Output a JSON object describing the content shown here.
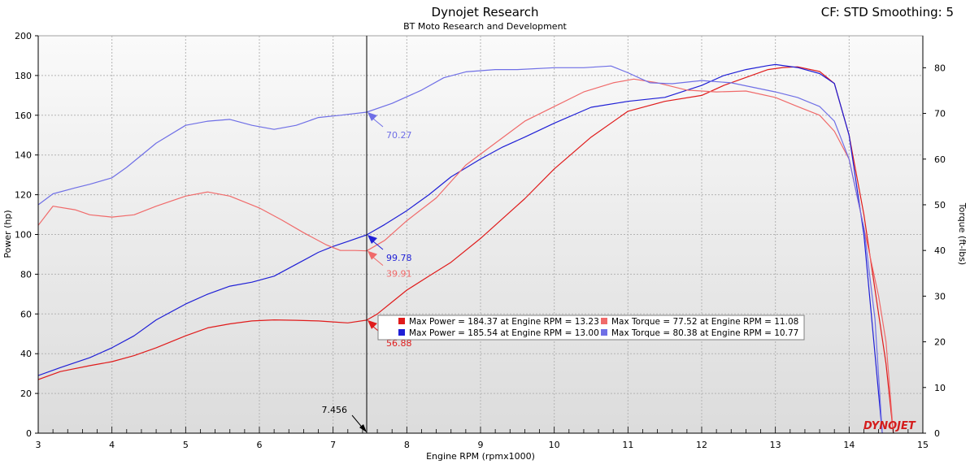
{
  "header": {
    "title": "Dynojet Research",
    "subtitle": "BT Moto Research and Development",
    "settings": "CF: STD Smoothing: 5"
  },
  "logo_text": "DYNOJET",
  "colors": {
    "red": "#e01b1b",
    "blue": "#1f1fd6",
    "light_red": "#f06a6a",
    "light_blue": "#6f6fe6",
    "plot_bg_top": "#fafafa",
    "plot_bg_bottom": "#dcdcdc"
  },
  "chart_data": {
    "type": "line",
    "title": "Dynojet Research",
    "subtitle": "BT Moto Research and Development",
    "xlabel": "Engine RPM (rpmx1000)",
    "ylabel": "Power (hp)",
    "y2label": "Torque (ft-lbs)",
    "xlim": [
      3,
      15
    ],
    "ylim": [
      0,
      200
    ],
    "y2lim": [
      0,
      87
    ],
    "xticks": [
      "3",
      "4",
      "5",
      "6",
      "7",
      "8",
      "9",
      "10",
      "11",
      "12",
      "13",
      "14",
      "15"
    ],
    "yticks": [
      "0",
      "20",
      "40",
      "60",
      "80",
      "100",
      "120",
      "140",
      "160",
      "180",
      "200"
    ],
    "y2ticks": [
      "0",
      "10",
      "20",
      "30",
      "40",
      "50",
      "60",
      "70",
      "80"
    ],
    "grid": true,
    "cursor": {
      "x": 7.456,
      "label": "7.456"
    },
    "callouts": [
      {
        "label": "70.27",
        "value": 70.27,
        "axis": "y2",
        "series": 3
      },
      {
        "label": "99.78",
        "value": 99.78,
        "axis": "y",
        "series": 1
      },
      {
        "label": "39.91",
        "value": 39.91,
        "axis": "y2",
        "series": 2
      },
      {
        "label": "56.88",
        "value": 56.88,
        "axis": "y",
        "series": 0
      }
    ],
    "legend": [
      "Max Power = 184.37 at Engine RPM = 13.23",
      "Max Torque = 77.52 at Engine RPM = 11.08",
      "Max Power = 185.54 at Engine RPM = 13.00",
      "Max Torque = 80.38 at Engine RPM = 10.77"
    ],
    "series": [
      {
        "name": "Max Power = 184.37 at Engine RPM = 13.23",
        "axis": "y",
        "color": "#e01b1b",
        "x": [
          3.0,
          3.3,
          3.7,
          4.0,
          4.3,
          4.6,
          5.0,
          5.3,
          5.6,
          5.9,
          6.2,
          6.5,
          6.8,
          7.0,
          7.2,
          7.456,
          7.6,
          7.8,
          8.0,
          8.3,
          8.6,
          9.0,
          9.3,
          9.6,
          10.0,
          10.5,
          11.0,
          11.5,
          12.0,
          12.3,
          12.6,
          12.9,
          13.1,
          13.3,
          13.6,
          13.8,
          14.0,
          14.2,
          14.4,
          14.5,
          14.6
        ],
        "y": [
          27,
          31,
          34,
          36,
          39,
          43,
          49,
          53,
          55,
          56.5,
          57,
          56.8,
          56.5,
          56,
          55.5,
          56.88,
          60,
          66,
          72,
          79,
          86,
          98,
          108,
          118,
          133,
          149,
          162,
          167,
          170,
          175,
          179,
          183,
          184,
          184.37,
          182,
          176,
          150,
          110,
          60,
          35,
          0
        ]
      },
      {
        "name": "Max Power = 185.54 at Engine RPM = 13.00",
        "axis": "y",
        "color": "#1f1fd6",
        "x": [
          3.0,
          3.3,
          3.7,
          4.0,
          4.3,
          4.6,
          5.0,
          5.3,
          5.6,
          5.9,
          6.2,
          6.5,
          6.8,
          7.0,
          7.2,
          7.456,
          7.7,
          8.0,
          8.3,
          8.6,
          9.0,
          9.3,
          9.6,
          10.0,
          10.5,
          11.0,
          11.5,
          12.0,
          12.3,
          12.6,
          12.9,
          13.0,
          13.3,
          13.6,
          13.8,
          14.0,
          14.2,
          14.35,
          14.45
        ],
        "y": [
          29,
          33,
          38,
          43,
          49,
          57,
          65,
          70,
          74,
          76,
          79,
          85,
          91,
          94,
          96.5,
          99.78,
          105,
          112,
          120,
          129,
          138,
          144,
          149,
          156,
          164,
          167,
          169,
          175,
          180,
          183,
          185,
          185.54,
          184,
          181,
          176,
          150,
          100,
          40,
          0
        ]
      },
      {
        "name": "Max Torque = 77.52 at Engine RPM = 11.08",
        "axis": "y2",
        "color": "#f06a6a",
        "x": [
          3.0,
          3.2,
          3.5,
          3.7,
          4.0,
          4.3,
          4.6,
          5.0,
          5.3,
          5.6,
          6.0,
          6.3,
          6.6,
          6.9,
          7.1,
          7.3,
          7.456,
          7.7,
          8.0,
          8.4,
          8.8,
          9.2,
          9.6,
          10.0,
          10.4,
          10.8,
          11.08,
          11.4,
          11.8,
          12.2,
          12.6,
          13.0,
          13.3,
          13.6,
          13.8,
          14.0,
          14.2,
          14.4,
          14.5,
          14.6
        ],
        "y": [
          45.5,
          49.7,
          48.9,
          47.8,
          47.3,
          47.8,
          49.7,
          51.9,
          52.8,
          51.9,
          49.3,
          46.7,
          43.9,
          41.3,
          40.0,
          40.0,
          39.91,
          42.2,
          46.5,
          51.5,
          58.7,
          63.5,
          68.3,
          71.5,
          74.7,
          76.7,
          77.52,
          76.7,
          75.1,
          74.7,
          74.9,
          73.5,
          71.5,
          69.6,
          66.1,
          60.0,
          45.0,
          30.0,
          20.0,
          0.0
        ]
      },
      {
        "name": "Max Torque = 80.38 at Engine RPM = 10.77",
        "axis": "y2",
        "color": "#6f6fe6",
        "x": [
          3.0,
          3.2,
          3.5,
          3.7,
          4.0,
          4.2,
          4.6,
          5.0,
          5.3,
          5.6,
          5.9,
          6.2,
          6.5,
          6.8,
          7.1,
          7.456,
          7.8,
          8.2,
          8.5,
          8.8,
          9.2,
          9.5,
          10.0,
          10.4,
          10.77,
          11.0,
          11.3,
          11.6,
          12.0,
          12.4,
          12.7,
          13.0,
          13.3,
          13.6,
          13.8,
          14.0,
          14.2,
          14.35,
          14.45
        ],
        "y": [
          50.0,
          52.4,
          53.7,
          54.5,
          55.9,
          58.2,
          63.5,
          67.4,
          68.3,
          68.7,
          67.4,
          66.5,
          67.4,
          69.1,
          69.6,
          70.27,
          72.2,
          75.1,
          77.8,
          79.1,
          79.6,
          79.6,
          80.0,
          80.0,
          80.38,
          78.9,
          76.7,
          76.5,
          77.2,
          76.7,
          75.7,
          74.7,
          73.5,
          71.5,
          68.3,
          60.0,
          45.0,
          25.0,
          0.0
        ]
      }
    ]
  }
}
